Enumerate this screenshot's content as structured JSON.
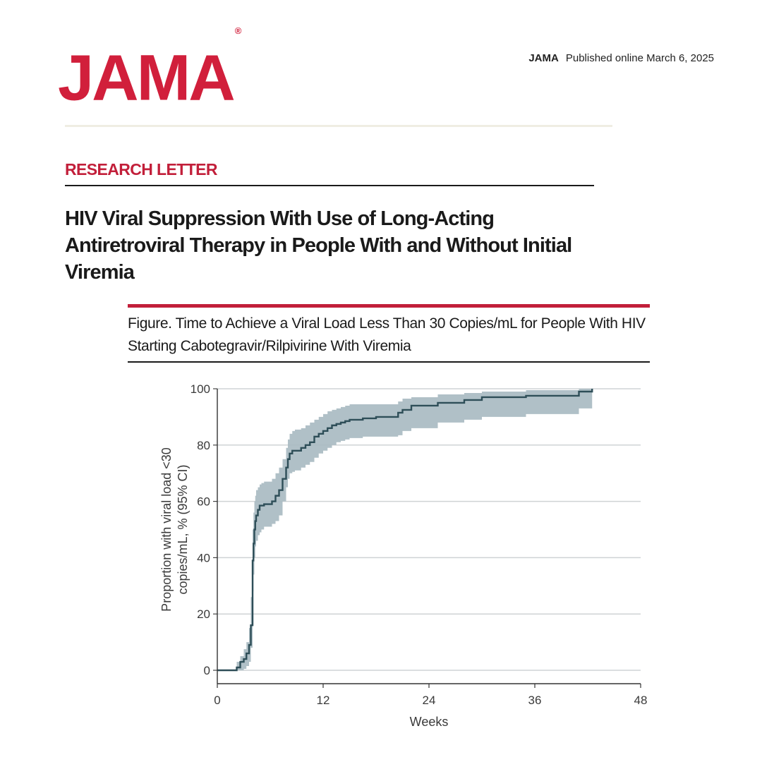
{
  "header": {
    "logo_text": "JAMA",
    "logo_mark": "®",
    "journal_name": "JAMA",
    "published": "Published online March  6, 2025",
    "brand_color": "#d11f3b"
  },
  "article": {
    "section": "RESEARCH LETTER",
    "title": "HIV Viral Suppression With Use of Long-Acting Antiretroviral Therapy in People With and Without Initial Viremia"
  },
  "figure": {
    "caption": "Figure. Time to Achieve a Viral Load Less Than 30 Copies/mL for People With HIV Starting Cabotegravir/Rilpivirine With Viremia"
  },
  "chart_data": {
    "type": "line",
    "subtype": "kaplan-meier-step-with-ci",
    "xlabel": "Weeks",
    "ylabel": [
      "Proportion with viral load <30",
      "copies/mL, % (95% CI)"
    ],
    "xlim": [
      0,
      48
    ],
    "ylim": [
      0,
      100
    ],
    "xticks": [
      0,
      12,
      24,
      36,
      48
    ],
    "yticks": [
      0,
      20,
      40,
      60,
      80,
      100
    ],
    "grid": "horizontal",
    "line_color": "#2e4e58",
    "ci_color": "#a7b9c1",
    "series": [
      {
        "x": [
          0,
          2.2,
          2.6,
          3.0,
          3.3,
          3.6,
          3.8,
          4.0,
          4.1,
          4.2,
          4.3,
          4.4,
          4.6,
          4.8,
          5.0,
          5.3,
          6.2,
          6.6,
          7.0,
          7.4,
          7.8,
          8.0,
          8.2,
          8.5,
          8.8,
          9.5,
          10.0,
          10.5,
          11.0,
          11.5,
          12.0,
          12.5,
          13.0,
          13.5,
          14.0,
          14.5,
          15.0,
          16.5,
          18.0,
          20.5,
          21.0,
          22.0,
          25.0,
          28.0,
          30.0,
          35.0,
          41.0,
          42.5
        ],
        "y": [
          0,
          1,
          3,
          4,
          6,
          9,
          16,
          39,
          45,
          50,
          53,
          55,
          57,
          58.5,
          58.5,
          59,
          60,
          62,
          64,
          68,
          72,
          75,
          77,
          78,
          78,
          79,
          80,
          81,
          83,
          84,
          85,
          86,
          87,
          87.5,
          88,
          88.5,
          89,
          89.5,
          90,
          91.5,
          92.5,
          94,
          95,
          96,
          97,
          97.5,
          99,
          100
        ],
        "ci_lower": [
          0,
          0,
          0,
          0.5,
          1.5,
          3,
          8,
          28,
          34,
          40,
          44,
          46,
          48,
          49,
          50,
          51,
          52,
          53,
          55,
          60,
          65,
          68,
          70,
          70.5,
          71,
          72,
          73,
          74,
          75.5,
          77,
          78,
          79,
          80,
          81,
          81.5,
          82,
          82.5,
          83,
          83,
          83.5,
          85,
          86,
          88,
          89,
          90,
          91,
          93,
          93
        ],
        "ci_upper": [
          0,
          3,
          5,
          7.5,
          10,
          15,
          26,
          50,
          56,
          60,
          62,
          64,
          65,
          66,
          66.5,
          67,
          68,
          70,
          72,
          75,
          79,
          82,
          84,
          85,
          85.5,
          86,
          87,
          88,
          89,
          90,
          91,
          92,
          92.5,
          93,
          93.5,
          94,
          94.5,
          94.5,
          94.5,
          95.5,
          96.5,
          97,
          98,
          98.5,
          99,
          99.5,
          100,
          100
        ]
      }
    ]
  }
}
